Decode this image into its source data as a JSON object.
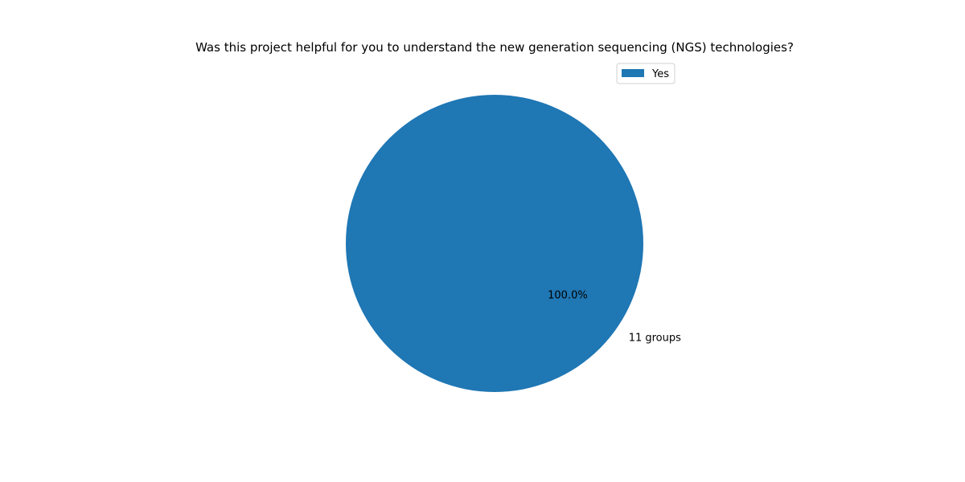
{
  "chart_data": {
    "type": "pie",
    "title": "Was this project helpful for you to understand the new generation sequencing (NGS) technologies?",
    "slices": [
      {
        "label": "11 groups",
        "legend": "Yes",
        "value": 11,
        "pct_label": "100.0%",
        "color": "#1f77b4"
      }
    ],
    "legend_position": "top-right"
  }
}
